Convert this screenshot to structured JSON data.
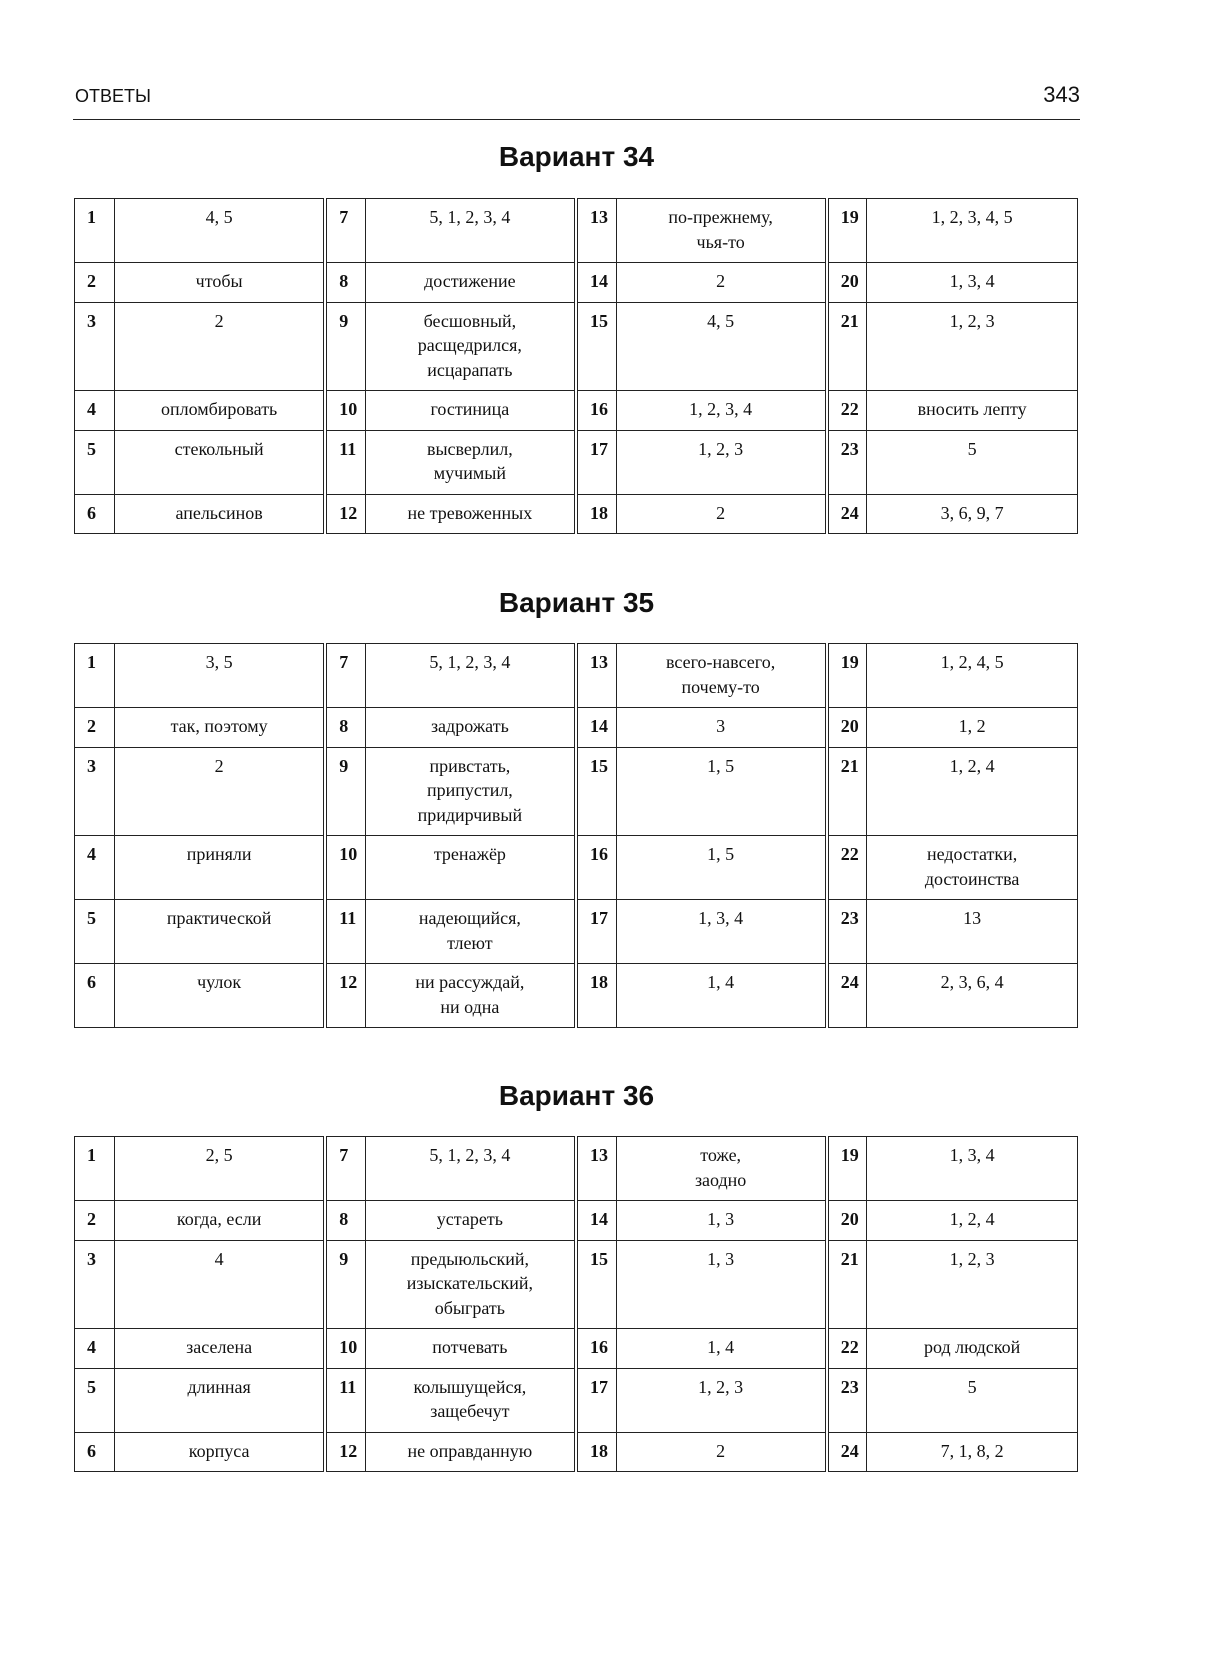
{
  "header": {
    "section": "ОТВЕТЫ",
    "page_number": "343"
  },
  "variants": [
    {
      "title": "Вариант 34",
      "rows": [
        [
          [
            "1",
            "4, 5"
          ],
          [
            "7",
            "5, 1, 2, 3, 4"
          ],
          [
            "13",
            "по-прежнему,\nчья-то"
          ],
          [
            "19",
            "1, 2, 3, 4, 5"
          ]
        ],
        [
          [
            "2",
            "чтобы"
          ],
          [
            "8",
            "достижение"
          ],
          [
            "14",
            "2"
          ],
          [
            "20",
            "1, 3, 4"
          ]
        ],
        [
          [
            "3",
            "2"
          ],
          [
            "9",
            "бесшовный,\nрасщедрился,\nисцарапать"
          ],
          [
            "15",
            "4, 5"
          ],
          [
            "21",
            "1, 2, 3"
          ]
        ],
        [
          [
            "4",
            "опломбировать"
          ],
          [
            "10",
            "гостиница"
          ],
          [
            "16",
            "1, 2, 3, 4"
          ],
          [
            "22",
            "вносить лепту"
          ]
        ],
        [
          [
            "5",
            "стекольный"
          ],
          [
            "11",
            "высверлил,\nмучимый"
          ],
          [
            "17",
            "1, 2, 3"
          ],
          [
            "23",
            "5"
          ]
        ],
        [
          [
            "6",
            "апельсинов"
          ],
          [
            "12",
            "не тревоженных"
          ],
          [
            "18",
            "2"
          ],
          [
            "24",
            "3, 6, 9, 7"
          ]
        ]
      ]
    },
    {
      "title": "Вариант 35",
      "rows": [
        [
          [
            "1",
            "3, 5"
          ],
          [
            "7",
            "5, 1, 2, 3, 4"
          ],
          [
            "13",
            "всего-навсего,\nпочему-то"
          ],
          [
            "19",
            "1, 2, 4, 5"
          ]
        ],
        [
          [
            "2",
            "так, поэтому"
          ],
          [
            "8",
            "задрожать"
          ],
          [
            "14",
            "3"
          ],
          [
            "20",
            "1, 2"
          ]
        ],
        [
          [
            "3",
            "2"
          ],
          [
            "9",
            "привстать,\nприпустил,\nпридирчивый"
          ],
          [
            "15",
            "1, 5"
          ],
          [
            "21",
            "1, 2, 4"
          ]
        ],
        [
          [
            "4",
            "приняли"
          ],
          [
            "10",
            "тренажёр"
          ],
          [
            "16",
            "1, 5"
          ],
          [
            "22",
            "недостатки,\nдостоинства"
          ]
        ],
        [
          [
            "5",
            "практической"
          ],
          [
            "11",
            "надеющийся,\nтлеют"
          ],
          [
            "17",
            "1, 3, 4"
          ],
          [
            "23",
            "13"
          ]
        ],
        [
          [
            "6",
            "чулок"
          ],
          [
            "12",
            "ни рассуждай,\nни одна"
          ],
          [
            "18",
            "1, 4"
          ],
          [
            "24",
            "2, 3, 6, 4"
          ]
        ]
      ]
    },
    {
      "title": "Вариант 36",
      "rows": [
        [
          [
            "1",
            "2, 5"
          ],
          [
            "7",
            "5, 1, 2, 3, 4"
          ],
          [
            "13",
            "тоже,\nзаодно"
          ],
          [
            "19",
            "1, 3, 4"
          ]
        ],
        [
          [
            "2",
            "когда, если"
          ],
          [
            "8",
            "устареть"
          ],
          [
            "14",
            "1, 3"
          ],
          [
            "20",
            "1, 2, 4"
          ]
        ],
        [
          [
            "3",
            "4"
          ],
          [
            "9",
            "предыюльский,\nизыскательский,\nобыграть"
          ],
          [
            "15",
            "1, 3"
          ],
          [
            "21",
            "1, 2, 3"
          ]
        ],
        [
          [
            "4",
            "заселена"
          ],
          [
            "10",
            "потчевать"
          ],
          [
            "16",
            "1, 4"
          ],
          [
            "22",
            "род людской"
          ]
        ],
        [
          [
            "5",
            "длинная"
          ],
          [
            "11",
            "колышущейся,\nзащебечут"
          ],
          [
            "17",
            "1, 2, 3"
          ],
          [
            "23",
            "5"
          ]
        ],
        [
          [
            "6",
            "корпуса"
          ],
          [
            "12",
            "не оправданную"
          ],
          [
            "18",
            "2"
          ],
          [
            "24",
            "7, 1, 8, 2"
          ]
        ]
      ]
    }
  ]
}
